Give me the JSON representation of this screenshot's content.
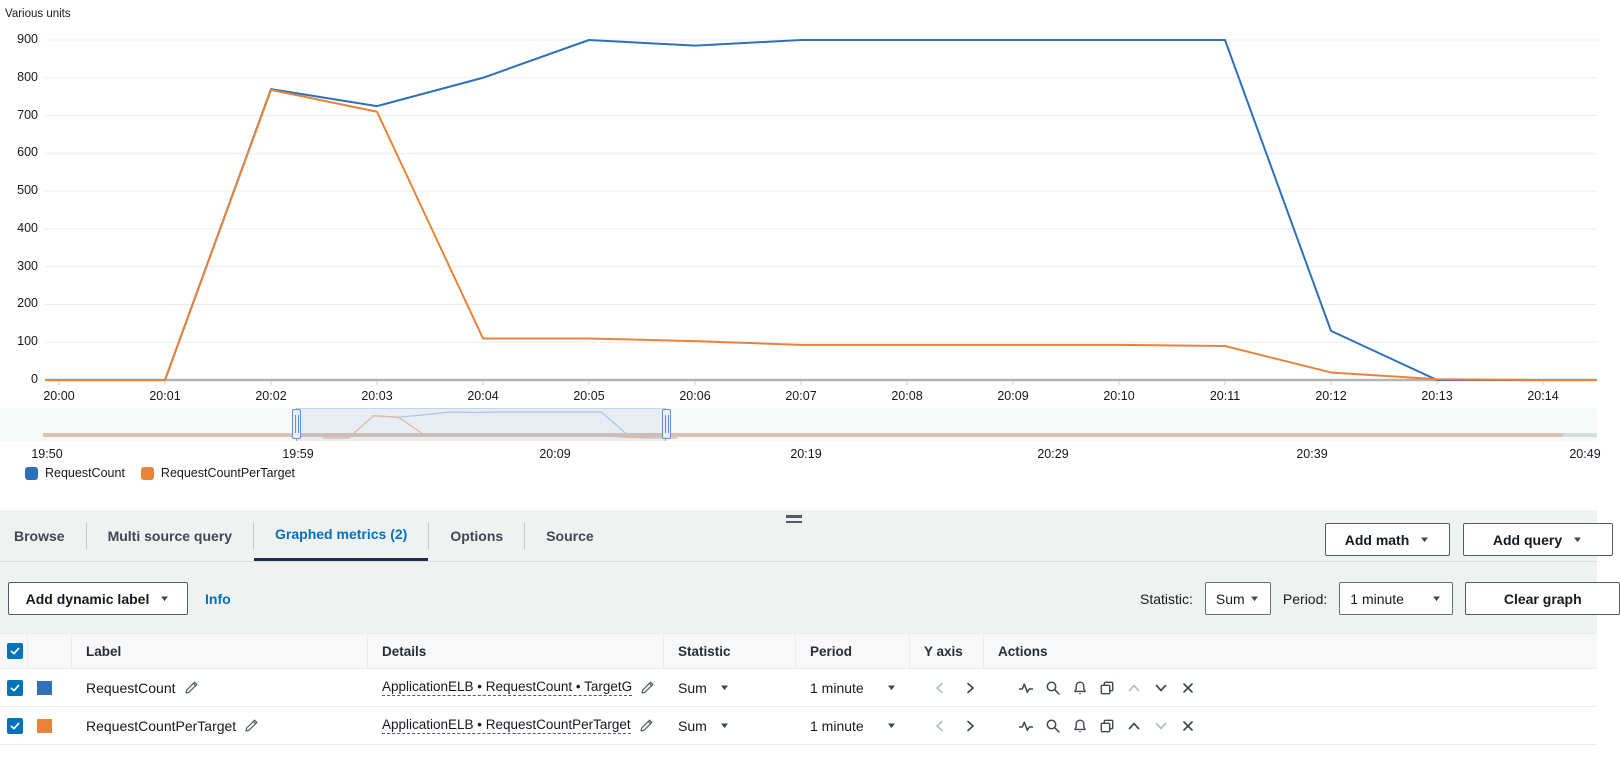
{
  "colors": {
    "accent": "#0073bb"
  },
  "chart": {
    "units_label": "Various units",
    "timeline_labels": [
      "19:50",
      "19:59",
      "20:09",
      "20:19",
      "20:29",
      "20:39",
      "20:49"
    ]
  },
  "chart_data": {
    "type": "line",
    "x": [
      "20:00",
      "20:01",
      "20:02",
      "20:03",
      "20:04",
      "20:05",
      "20:06",
      "20:07",
      "20:08",
      "20:09",
      "20:10",
      "20:11",
      "20:12",
      "20:13",
      "20:14"
    ],
    "series": [
      {
        "name": "RequestCount",
        "color": "#2e71b8",
        "values": [
          0,
          0,
          770,
          725,
          800,
          900,
          885,
          900,
          900,
          900,
          900,
          900,
          130,
          0,
          0
        ]
      },
      {
        "name": "RequestCountPerTarget",
        "color": "#e8833a",
        "values": [
          0,
          0,
          768,
          710,
          110,
          110,
          103,
          93,
          93,
          93,
          93,
          90,
          20,
          2,
          0
        ]
      }
    ],
    "title": "",
    "xlabel": "",
    "ylabel": "Various units",
    "ylim": [
      0,
      900
    ],
    "y_ticks": [
      0,
      100,
      200,
      300,
      400,
      500,
      600,
      700,
      800,
      900
    ],
    "grid": true,
    "legend_position": "bottom-left",
    "brush": {
      "timeline_start": "19:50",
      "timeline_end": "20:49",
      "selection_start": "19:59",
      "selection_end": "20:14"
    }
  },
  "tabs": {
    "browse": "Browse",
    "multi_source": "Multi source query",
    "graphed": "Graphed metrics (2)",
    "options": "Options",
    "source": "Source"
  },
  "toolbar": {
    "add_math": "Add math",
    "add_query": "Add query",
    "add_dynamic_label": "Add dynamic label",
    "info": "Info",
    "statistic_label": "Statistic:",
    "statistic_value": "Sum",
    "period_label": "Period:",
    "period_value": "1 minute",
    "clear_graph": "Clear graph"
  },
  "table": {
    "headers": {
      "label": "Label",
      "details": "Details",
      "statistic": "Statistic",
      "period": "Period",
      "y_axis": "Y axis",
      "actions": "Actions"
    },
    "rows": [
      {
        "label": "RequestCount",
        "details": "ApplicationELB • RequestCount • TargetG",
        "statistic": "Sum",
        "period": "1 minute",
        "color": "#2e71b8",
        "checked": true
      },
      {
        "label": "RequestCountPerTarget",
        "details": "ApplicationELB • RequestCountPerTarget",
        "statistic": "Sum",
        "period": "1 minute",
        "color": "#e8833a",
        "checked": true
      }
    ]
  }
}
